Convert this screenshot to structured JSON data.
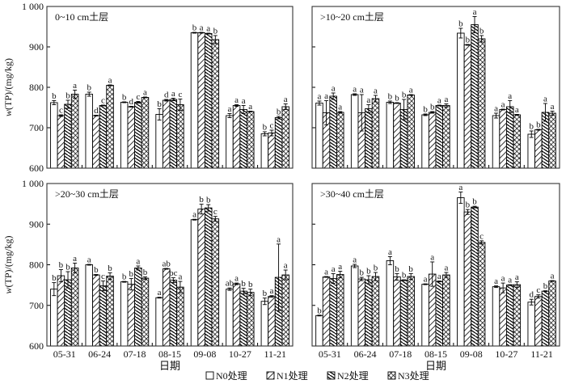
{
  "chart_data": {
    "type": "bar",
    "xlabel": "日期",
    "ylabel_var": "w",
    "ylabel_rest": "(TP)/(mg/kg)",
    "ylim": [
      600,
      1000
    ],
    "yticks": [
      600,
      700,
      800,
      900,
      1000
    ],
    "ytick_labels": [
      "600",
      "700",
      "800",
      "900",
      "1 000"
    ],
    "categories": [
      "05-31",
      "06-24",
      "07-18",
      "08-15",
      "09-08",
      "10-27",
      "11-21"
    ],
    "legend": [
      "N0处理",
      "N1处理",
      "N2处理",
      "N3处理"
    ],
    "legend_position": "bottom",
    "panels": [
      {
        "title": "0~10 cm土层",
        "series": [
          {
            "name": "N0处理",
            "values": [
              762,
              783,
              763,
              733,
              935,
              730,
              685
            ],
            "err": [
              5,
              5,
              1,
              14,
              1,
              5,
              5
            ],
            "letters": [
              "b",
              "b",
              "b",
              "b",
              "b",
              "a",
              "b"
            ]
          },
          {
            "name": "N1处理",
            "values": [
              730,
              730,
              752,
              768,
              935,
              755,
              687
            ],
            "err": [
              2,
              1,
              1,
              2,
              1,
              2,
              7
            ],
            "letters": [
              "c",
              "d",
              "d",
              "d",
              "a",
              "a",
              "c"
            ]
          },
          {
            "name": "N2处理",
            "values": [
              758,
              755,
              763,
              770,
              933,
              745,
              725
            ],
            "err": [
              10,
              1,
              2,
              3,
              1,
              10,
              3
            ],
            "letters": [
              "b",
              "c",
              "c",
              "a",
              "a",
              "a",
              "b"
            ]
          },
          {
            "name": "N3处理",
            "values": [
              783,
              805,
              775,
              757,
              918,
              740,
              752
            ],
            "err": [
              10,
              1,
              1,
              14,
              10,
              1,
              7
            ],
            "letters": [
              "a",
              "a",
              "a",
              "c",
              "b",
              "a",
              "a"
            ]
          }
        ]
      },
      {
        "title": ">10~20 cm土层",
        "series": [
          {
            "name": "N0处理",
            "values": [
              761,
              782,
              763,
              732,
              934,
              730,
              684
            ],
            "err": [
              5,
              2,
              3,
              2,
              12,
              6,
              8
            ],
            "letters": [
              "a",
              "a",
              "b",
              "b",
              "b",
              "a",
              "b"
            ]
          },
          {
            "name": "N1处理",
            "values": [
              737,
              737,
              761,
              738,
              905,
              745,
              695
            ],
            "err": [
              30,
              45,
              1,
              2,
              1,
              1,
              1
            ],
            "letters": [
              "a",
              "a",
              "b",
              "b",
              "b",
              "a",
              "b"
            ]
          },
          {
            "name": "N2处理",
            "values": [
              778,
              747,
              745,
              755,
              955,
              752,
              738
            ],
            "err": [
              8,
              10,
              25,
              1,
              20,
              15,
              22
            ],
            "letters": [
              "a",
              "a",
              "b",
              "a",
              "a",
              "a",
              "a"
            ]
          },
          {
            "name": "N3处理",
            "values": [
              738,
              772,
              781,
              755,
              920,
              732,
              736
            ],
            "err": [
              2,
              8,
              1,
              4,
              8,
              1,
              5
            ],
            "letters": [
              "a",
              "a",
              "a",
              "a",
              "b",
              "a",
              "a"
            ]
          }
        ]
      },
      {
        "title": ">20~30 cm土层",
        "series": [
          {
            "name": "N0处理",
            "values": [
              740,
              800,
              758,
              719,
              911,
              740,
              710
            ],
            "err": [
              16,
              1,
              1,
              1,
              1,
              3,
              8
            ],
            "letters": [
              "b",
              "a",
              "b",
              "a",
              "a",
              "ab",
              "b"
            ]
          },
          {
            "name": "N1处理",
            "values": [
              773,
              775,
              752,
              790,
              937,
              753,
              722
            ],
            "err": [
              15,
              1,
              14,
              1,
              12,
              2,
              2
            ],
            "letters": [
              "b",
              "b",
              "b",
              "ab",
              "b",
              "a",
              "a"
            ]
          },
          {
            "name": "N2处理",
            "values": [
              763,
              748,
              792,
              762,
              940,
              735,
              769
            ],
            "err": [
              20,
              12,
              5,
              6,
              8,
              7,
              82
            ],
            "letters": [
              "b",
              "c",
              "a",
              "bc",
              "b",
              "b",
              "a"
            ]
          },
          {
            "name": "N3处理",
            "values": [
              792,
              772,
              767,
              745,
              913,
              732,
              775
            ],
            "err": [
              12,
              8,
              3,
              14,
              6,
              8,
              12
            ],
            "letters": [
              "a",
              "b",
              "b",
              "a",
              "c",
              "b",
              "a"
            ]
          }
        ]
      },
      {
        "title": ">30~40 cm土层",
        "series": [
          {
            "name": "N0处理",
            "values": [
              675,
              797,
              810,
              752,
              965,
              746,
              708
            ],
            "err": [
              1,
              4,
              10,
              1,
              14,
              2,
              7
            ],
            "letters": [
              "b",
              "a",
              "a",
              "a",
              "a",
              "a",
              "d"
            ]
          },
          {
            "name": "N1处理",
            "values": [
              770,
              765,
              770,
              777,
              930,
              743,
              722
            ],
            "err": [
              1,
              4,
              8,
              30,
              6,
              12,
              4
            ],
            "letters": [
              "a",
              "b",
              "b",
              "a",
              "b",
              "a",
              "c"
            ]
          },
          {
            "name": "N2处理",
            "values": [
              766,
              763,
              762,
              759,
              942,
              750,
              735
            ],
            "err": [
              12,
              10,
              1,
              1,
              2,
              1,
              1
            ],
            "letters": [
              "a",
              "b",
              "b",
              "a",
              "b",
              "a",
              "b"
            ]
          },
          {
            "name": "N3处理",
            "values": [
              776,
              771,
              771,
              775,
              855,
              751,
              760
            ],
            "err": [
              8,
              10,
              7,
              6,
              4,
              7,
              1
            ],
            "letters": [
              "a",
              "b",
              "b",
              "a",
              "c",
              "a",
              "a"
            ]
          }
        ]
      }
    ]
  }
}
